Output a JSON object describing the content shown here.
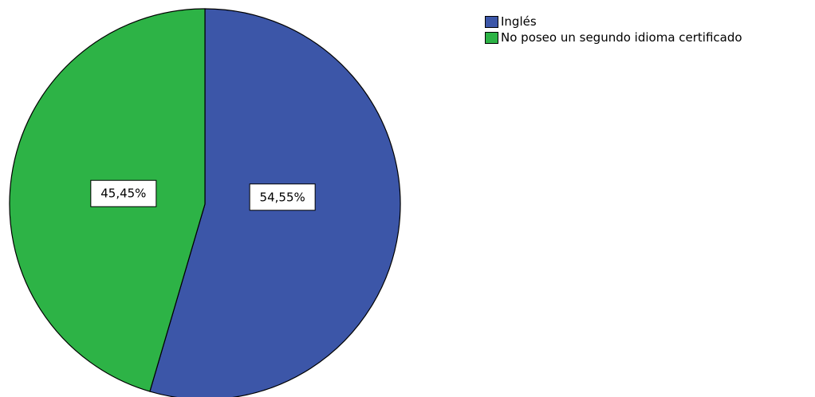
{
  "chart_data": {
    "type": "pie",
    "categories": [
      "Inglés",
      "No poseo un segundo idioma certificado"
    ],
    "values": [
      54.55,
      45.45
    ],
    "value_labels": [
      "54,55%",
      "45,45%"
    ],
    "colors": [
      "#3c56a8",
      "#2db346"
    ],
    "legend": {
      "placement": "top-right",
      "entries": [
        "Inglés",
        "No poseo un segundo idioma certificado"
      ]
    },
    "start": "12 o'clock",
    "direction": "clockwise"
  }
}
